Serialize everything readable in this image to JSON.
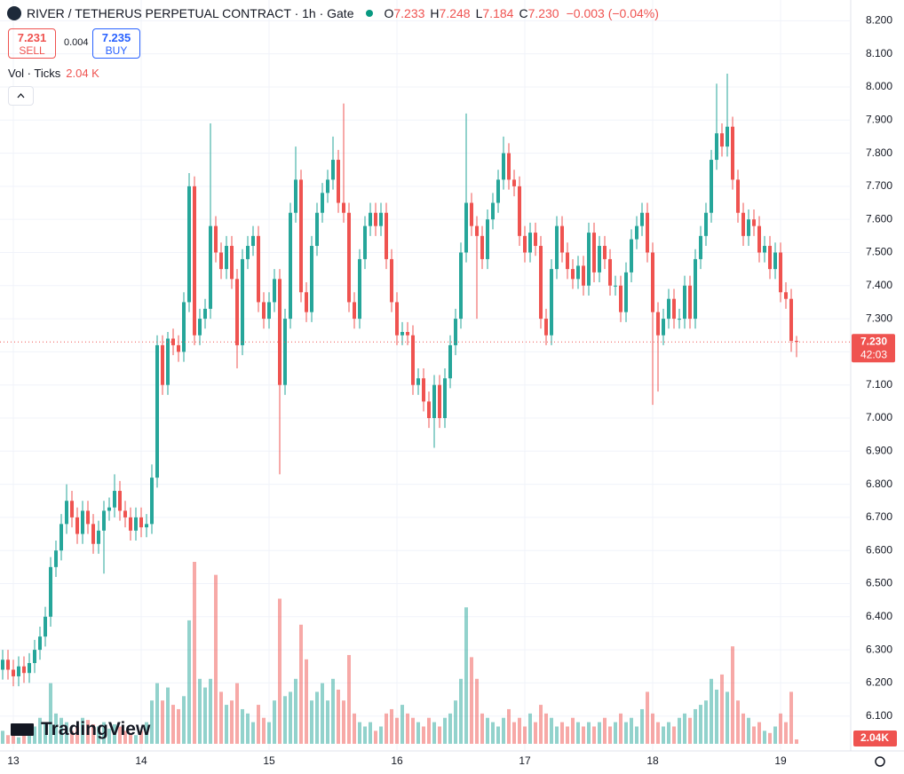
{
  "header": {
    "title": "RIVER / TETHERUS PERPETUAL CONTRACT · 1h · Gate",
    "ohlc": [
      {
        "key": "O",
        "value": "7.233"
      },
      {
        "key": "H",
        "value": "7.248"
      },
      {
        "key": "L",
        "value": "7.184"
      },
      {
        "key": "C",
        "value": "7.230"
      }
    ],
    "change": "−0.003 (−0.04%)"
  },
  "trade": {
    "sell_price": "7.231",
    "sell_label": "SELL",
    "spread": "0.004",
    "buy_price": "7.235",
    "buy_label": "BUY"
  },
  "branding": "TradingView",
  "chart_data": {
    "type": "candlestick",
    "categories": [
      null,
      null,
      "13",
      null,
      null,
      null,
      null,
      null,
      null,
      null,
      null,
      null,
      null,
      null,
      null,
      null,
      null,
      null,
      null,
      null,
      null,
      null,
      null,
      null,
      null,
      null,
      "14",
      null,
      null,
      null,
      null,
      null,
      null,
      null,
      null,
      null,
      null,
      null,
      null,
      null,
      null,
      null,
      null,
      null,
      null,
      null,
      null,
      null,
      null,
      null,
      "15",
      null,
      null,
      null,
      null,
      null,
      null,
      null,
      null,
      null,
      null,
      null,
      null,
      null,
      null,
      null,
      null,
      null,
      null,
      null,
      null,
      null,
      null,
      null,
      "16",
      null,
      null,
      null,
      null,
      null,
      null,
      null,
      null,
      null,
      null,
      null,
      null,
      null,
      null,
      null,
      null,
      null,
      null,
      null,
      null,
      null,
      null,
      null,
      "17",
      null,
      null,
      null,
      null,
      null,
      null,
      null,
      null,
      null,
      null,
      null,
      null,
      null,
      null,
      null,
      null,
      null,
      null,
      null,
      null,
      null,
      null,
      null,
      "18",
      null,
      null,
      null,
      null,
      null,
      null,
      null,
      null,
      null,
      null,
      null,
      null,
      null,
      null,
      null,
      null,
      null,
      null,
      null,
      null,
      null,
      null,
      null,
      "19",
      null,
      null,
      null
    ],
    "open": [
      6.24,
      6.27,
      6.24,
      6.22,
      6.25,
      6.23,
      6.26,
      6.3,
      6.34,
      6.4,
      6.55,
      6.6,
      6.68,
      6.75,
      6.7,
      6.65,
      6.72,
      6.68,
      6.62,
      6.66,
      6.72,
      6.73,
      6.78,
      6.72,
      6.7,
      6.66,
      6.7,
      6.67,
      6.68,
      6.82,
      7.22,
      7.1,
      7.24,
      7.22,
      7.2,
      7.35,
      7.7,
      7.25,
      7.3,
      7.33,
      7.58,
      7.5,
      7.45,
      7.52,
      7.42,
      7.22,
      7.48,
      7.52,
      7.55,
      7.35,
      7.3,
      7.35,
      7.42,
      7.1,
      7.3,
      7.62,
      7.72,
      7.38,
      7.32,
      7.52,
      7.62,
      7.68,
      7.72,
      7.78,
      7.65,
      7.62,
      7.35,
      7.3,
      7.48,
      7.58,
      7.62,
      7.58,
      7.62,
      7.48,
      7.35,
      7.25,
      7.26,
      7.25,
      7.1,
      7.12,
      7.05,
      7.0,
      7.1,
      7.0,
      7.12,
      7.22,
      7.3,
      7.5,
      7.65,
      7.58,
      7.55,
      7.48,
      7.6,
      7.65,
      7.72,
      7.8,
      7.72,
      7.7,
      7.55,
      7.5,
      7.56,
      7.52,
      7.3,
      7.25,
      7.45,
      7.58,
      7.5,
      7.45,
      7.42,
      7.46,
      7.4,
      7.56,
      7.44,
      7.52,
      7.48,
      7.4,
      7.4,
      7.32,
      7.44,
      7.54,
      7.58,
      7.62,
      7.5,
      7.32,
      7.25,
      7.3,
      7.36,
      7.3,
      7.3,
      7.4,
      7.3,
      7.48,
      7.55,
      7.62,
      7.78,
      7.86,
      7.82,
      7.88,
      7.72,
      7.62,
      7.55,
      7.6,
      7.58,
      7.5,
      7.52,
      7.45,
      7.5,
      7.38,
      7.36,
      7.233
    ],
    "high": [
      6.3,
      6.3,
      6.27,
      6.28,
      6.28,
      6.29,
      6.33,
      6.37,
      6.43,
      6.58,
      6.63,
      6.71,
      6.8,
      6.78,
      6.73,
      6.75,
      6.75,
      6.71,
      6.69,
      6.75,
      6.76,
      6.83,
      6.81,
      6.75,
      6.73,
      6.73,
      6.73,
      6.71,
      6.86,
      7.25,
      7.25,
      7.26,
      7.27,
      7.25,
      7.38,
      7.74,
      7.73,
      7.33,
      7.36,
      7.89,
      7.61,
      7.53,
      7.55,
      7.55,
      7.45,
      7.51,
      7.55,
      7.58,
      7.58,
      7.38,
      7.38,
      7.45,
      7.45,
      7.33,
      7.65,
      7.82,
      7.75,
      7.41,
      7.55,
      7.65,
      7.71,
      7.75,
      7.85,
      7.81,
      7.95,
      7.65,
      7.38,
      7.51,
      7.61,
      7.65,
      7.65,
      7.65,
      7.65,
      7.51,
      7.38,
      7.29,
      7.29,
      7.28,
      7.15,
      7.15,
      7.08,
      7.13,
      7.13,
      7.15,
      7.25,
      7.33,
      7.53,
      7.92,
      7.68,
      7.61,
      7.58,
      7.63,
      7.68,
      7.75,
      7.85,
      7.83,
      7.75,
      7.73,
      7.58,
      7.59,
      7.59,
      7.55,
      7.33,
      7.48,
      7.61,
      7.61,
      7.53,
      7.48,
      7.49,
      7.49,
      7.59,
      7.59,
      7.55,
      7.55,
      7.51,
      7.43,
      7.43,
      7.47,
      7.57,
      7.61,
      7.65,
      7.65,
      7.53,
      7.35,
      7.33,
      7.39,
      7.39,
      7.33,
      7.43,
      7.43,
      7.51,
      7.58,
      7.65,
      7.81,
      8.01,
      7.89,
      8.04,
      7.91,
      7.75,
      7.65,
      7.63,
      7.63,
      7.61,
      7.55,
      7.55,
      7.53,
      7.53,
      7.41,
      7.39,
      7.248
    ],
    "low": [
      6.21,
      6.21,
      6.19,
      6.19,
      6.2,
      6.2,
      6.23,
      6.27,
      6.31,
      6.37,
      6.52,
      6.57,
      6.65,
      6.67,
      6.62,
      6.62,
      6.65,
      6.59,
      6.59,
      6.53,
      6.69,
      6.7,
      6.69,
      6.67,
      6.63,
      6.63,
      6.64,
      6.64,
      6.65,
      6.79,
      7.07,
      7.07,
      7.19,
      7.17,
      7.17,
      7.32,
      7.22,
      7.22,
      7.27,
      7.3,
      7.47,
      7.42,
      7.42,
      7.39,
      7.15,
      7.19,
      7.45,
      7.49,
      7.32,
      7.27,
      7.27,
      7.32,
      6.83,
      7.07,
      7.27,
      7.59,
      7.35,
      7.29,
      7.29,
      7.49,
      7.59,
      7.65,
      7.69,
      7.62,
      7.59,
      7.32,
      7.27,
      7.27,
      7.45,
      7.55,
      7.55,
      7.55,
      7.45,
      7.32,
      7.22,
      7.22,
      7.22,
      7.07,
      7.07,
      7.02,
      6.97,
      6.91,
      6.97,
      6.97,
      7.09,
      7.19,
      7.27,
      7.47,
      7.55,
      7.3,
      7.45,
      7.45,
      7.57,
      7.62,
      7.69,
      7.69,
      7.67,
      7.52,
      7.47,
      7.47,
      7.49,
      7.27,
      7.22,
      7.22,
      7.42,
      7.47,
      7.42,
      7.39,
      7.39,
      7.37,
      7.37,
      7.41,
      7.41,
      7.45,
      7.37,
      7.37,
      7.29,
      7.29,
      7.41,
      7.51,
      7.55,
      7.47,
      7.04,
      7.08,
      7.22,
      7.27,
      7.27,
      7.27,
      7.27,
      7.27,
      7.27,
      7.45,
      7.52,
      7.59,
      7.75,
      7.79,
      7.79,
      7.69,
      7.59,
      7.52,
      7.52,
      7.55,
      7.47,
      7.47,
      7.42,
      7.42,
      7.35,
      7.33,
      7.2,
      7.184
    ],
    "close": [
      6.27,
      6.24,
      6.22,
      6.25,
      6.23,
      6.26,
      6.3,
      6.34,
      6.4,
      6.55,
      6.6,
      6.68,
      6.75,
      6.7,
      6.65,
      6.72,
      6.68,
      6.62,
      6.66,
      6.72,
      6.73,
      6.78,
      6.72,
      6.7,
      6.66,
      6.7,
      6.67,
      6.68,
      6.82,
      7.22,
      7.1,
      7.24,
      7.22,
      7.2,
      7.35,
      7.7,
      7.25,
      7.3,
      7.33,
      7.58,
      7.5,
      7.45,
      7.52,
      7.42,
      7.22,
      7.48,
      7.52,
      7.55,
      7.35,
      7.3,
      7.35,
      7.42,
      7.1,
      7.3,
      7.62,
      7.72,
      7.38,
      7.32,
      7.52,
      7.62,
      7.68,
      7.72,
      7.78,
      7.65,
      7.62,
      7.35,
      7.3,
      7.48,
      7.58,
      7.62,
      7.58,
      7.62,
      7.48,
      7.35,
      7.25,
      7.26,
      7.25,
      7.1,
      7.12,
      7.05,
      7.0,
      7.1,
      7.0,
      7.12,
      7.22,
      7.3,
      7.5,
      7.65,
      7.58,
      7.55,
      7.48,
      7.6,
      7.65,
      7.72,
      7.8,
      7.72,
      7.7,
      7.55,
      7.5,
      7.56,
      7.52,
      7.3,
      7.25,
      7.45,
      7.58,
      7.5,
      7.45,
      7.42,
      7.46,
      7.4,
      7.56,
      7.44,
      7.52,
      7.48,
      7.4,
      7.4,
      7.32,
      7.44,
      7.54,
      7.58,
      7.62,
      7.5,
      7.32,
      7.25,
      7.3,
      7.36,
      7.3,
      7.3,
      7.4,
      7.3,
      7.48,
      7.55,
      7.62,
      7.78,
      7.86,
      7.82,
      7.88,
      7.72,
      7.62,
      7.55,
      7.6,
      7.58,
      7.5,
      7.52,
      7.45,
      7.5,
      7.38,
      7.36,
      7.233,
      7.23
    ],
    "volume": {
      "name": "Vol · Ticks",
      "legend_value": "2.04 K",
      "label": "2.04K",
      "values": [
        6,
        4,
        5,
        3,
        4,
        5,
        8,
        12,
        10,
        28,
        14,
        12,
        10,
        6,
        8,
        12,
        11,
        9,
        8,
        10,
        7,
        9,
        8,
        6,
        5,
        4,
        6,
        10,
        20,
        28,
        20,
        26,
        18,
        16,
        22,
        57,
        84,
        30,
        26,
        30,
        78,
        24,
        18,
        20,
        28,
        16,
        14,
        10,
        18,
        12,
        10,
        20,
        67,
        22,
        24,
        30,
        55,
        39,
        20,
        24,
        28,
        20,
        30,
        25,
        20,
        41,
        14,
        10,
        8,
        10,
        6,
        8,
        14,
        16,
        12,
        18,
        14,
        12,
        10,
        8,
        12,
        10,
        8,
        12,
        14,
        20,
        30,
        63,
        40,
        30,
        14,
        12,
        10,
        8,
        12,
        16,
        10,
        12,
        8,
        14,
        10,
        18,
        14,
        12,
        8,
        10,
        8,
        12,
        10,
        8,
        10,
        8,
        10,
        12,
        8,
        10,
        14,
        10,
        12,
        8,
        16,
        24,
        14,
        10,
        8,
        10,
        8,
        12,
        14,
        12,
        16,
        18,
        20,
        30,
        25,
        32,
        24,
        45,
        20,
        14,
        12,
        8,
        10,
        6,
        5,
        8,
        14,
        10,
        24,
        2.04
      ]
    },
    "last_price": {
      "value": 7.23,
      "label": "7.230"
    },
    "countdown": "42:03",
    "ylim": [
      6.0,
      8.26
    ],
    "yticks": [
      {
        "value": 6.1,
        "label": "6.100"
      },
      {
        "value": 6.2,
        "label": "6.200"
      },
      {
        "value": 6.3,
        "label": "6.300"
      },
      {
        "value": 6.4,
        "label": "6.400"
      },
      {
        "value": 6.5,
        "label": "6.500"
      },
      {
        "value": 6.6,
        "label": "6.600"
      },
      {
        "value": 6.7,
        "label": "6.700"
      },
      {
        "value": 6.8,
        "label": "6.800"
      },
      {
        "value": 6.9,
        "label": "6.900"
      },
      {
        "value": 7.0,
        "label": "7.000"
      },
      {
        "value": 7.1,
        "label": "7.100"
      },
      {
        "value": 7.2,
        "label": "7.200"
      },
      {
        "value": 7.3,
        "label": "7.300"
      },
      {
        "value": 7.4,
        "label": "7.400"
      },
      {
        "value": 7.5,
        "label": "7.500"
      },
      {
        "value": 7.6,
        "label": "7.600"
      },
      {
        "value": 7.7,
        "label": "7.700"
      },
      {
        "value": 7.8,
        "label": "7.800"
      },
      {
        "value": 7.9,
        "label": "7.900"
      },
      {
        "value": 8.0,
        "label": "8.000"
      },
      {
        "value": 8.1,
        "label": "8.100"
      },
      {
        "value": 8.2,
        "label": "8.200"
      }
    ],
    "up_color": "#26a69a",
    "down_color": "#ef5350",
    "grid": true
  }
}
